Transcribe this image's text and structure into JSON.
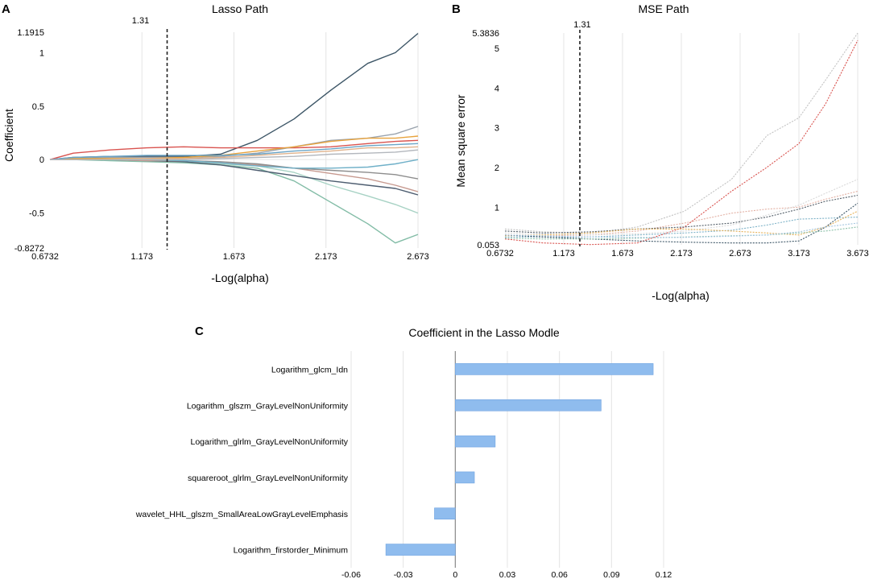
{
  "colors": {
    "gridline": "#e4e4e4",
    "axis": "#888888",
    "bar_fill": "#8fbcee",
    "bar_stroke": "#6fa3e0",
    "dashed_line": "#222222"
  },
  "panels": [
    {
      "letter": "A",
      "title": "Lasso Path"
    },
    {
      "letter": "B",
      "title": "MSE Path"
    },
    {
      "letter": "C",
      "title": "Coefficient in the Lasso Modle"
    }
  ],
  "chart_data": [
    {
      "id": "lasso_path",
      "type": "line",
      "title": "Lasso Path",
      "xlabel": "-Log(alpha)",
      "ylabel": "Coefficient",
      "xlim": [
        0.6732,
        2.673
      ],
      "ylim": [
        -0.8272,
        1.1915
      ],
      "x_ticks": [
        "0.6732",
        "1.173",
        "1.673",
        "2.173",
        "2.673"
      ],
      "x_tick_values": [
        0.6732,
        1.173,
        1.673,
        2.173,
        2.673
      ],
      "y_ticks": [
        "1.1915",
        "1",
        "0.5",
        "0",
        "-0.5",
        "-0.8272"
      ],
      "y_tick_values": [
        1.1915,
        1,
        0.5,
        0,
        -0.5,
        -0.8272
      ],
      "vline": {
        "x": 1.31,
        "label": "1.31"
      },
      "x": [
        0.6732,
        0.8,
        1.0,
        1.2,
        1.4,
        1.6,
        1.8,
        2.0,
        2.2,
        2.4,
        2.55,
        2.673
      ],
      "series": [
        {
          "color": "#3c5566",
          "values": [
            0,
            0.02,
            0.03,
            0.03,
            0.03,
            0.05,
            0.18,
            0.38,
            0.65,
            0.9,
            1.0,
            1.18
          ]
        },
        {
          "color": "#d9534f",
          "values": [
            0,
            0.06,
            0.09,
            0.11,
            0.12,
            0.11,
            0.11,
            0.11,
            0.12,
            0.15,
            0.17,
            0.18
          ]
        },
        {
          "color": "#9aa3ad",
          "values": [
            0,
            0.01,
            0.02,
            0.02,
            0.02,
            0.03,
            0.06,
            0.12,
            0.18,
            0.2,
            0.24,
            0.31
          ]
        },
        {
          "color": "#e8a33d",
          "values": [
            0,
            0.01,
            0.01,
            0.01,
            0.02,
            0.04,
            0.08,
            0.12,
            0.17,
            0.2,
            0.2,
            0.22
          ]
        },
        {
          "color": "#6aa5c7",
          "values": [
            0,
            0.02,
            0.03,
            0.04,
            0.04,
            0.04,
            0.05,
            0.08,
            0.1,
            0.13,
            0.14,
            0.15
          ]
        },
        {
          "color": "#82bca6",
          "values": [
            0,
            0,
            -0.01,
            -0.02,
            -0.03,
            -0.05,
            -0.08,
            -0.2,
            -0.4,
            -0.6,
            -0.78,
            -0.7
          ]
        },
        {
          "color": "#a7d2c4",
          "values": [
            0,
            0,
            0,
            -0.01,
            -0.02,
            -0.04,
            -0.06,
            -0.12,
            -0.24,
            -0.34,
            -0.42,
            -0.5
          ]
        },
        {
          "color": "#4d5d70",
          "values": [
            0,
            0,
            0,
            -0.01,
            -0.02,
            -0.05,
            -0.1,
            -0.15,
            -0.2,
            -0.24,
            -0.27,
            -0.33
          ]
        },
        {
          "color": "#c79a90",
          "values": [
            0,
            0,
            0,
            -0.01,
            -0.01,
            -0.03,
            -0.05,
            -0.08,
            -0.13,
            -0.18,
            -0.24,
            -0.3
          ]
        },
        {
          "color": "#8d8d8d",
          "values": [
            0,
            0,
            0,
            0,
            -0.01,
            -0.02,
            -0.04,
            -0.08,
            -0.1,
            -0.12,
            -0.14,
            -0.18
          ]
        },
        {
          "color": "#6fb0c8",
          "values": [
            0,
            0,
            0,
            0,
            -0.01,
            -0.03,
            -0.06,
            -0.08,
            -0.08,
            -0.07,
            -0.04,
            0
          ]
        },
        {
          "color": "#e0b38d",
          "values": [
            0,
            0,
            0,
            0.01,
            0.01,
            0.02,
            0.04,
            0.06,
            0.08,
            0.11,
            0.11,
            0.12
          ]
        },
        {
          "color": "#b3b7bd",
          "values": [
            0,
            0,
            0,
            0,
            0,
            0.01,
            0.02,
            0.03,
            0.05,
            0.06,
            0.07,
            0.09
          ]
        }
      ]
    },
    {
      "id": "mse_path",
      "type": "line",
      "title": "MSE Path",
      "xlabel": "-Log(alpha)",
      "ylabel": "Mean square error",
      "xlim": [
        0.6732,
        3.673
      ],
      "ylim": [
        0.053,
        5.3836
      ],
      "x_ticks": [
        "0.6732",
        "1.173",
        "1.673",
        "2.173",
        "2.673",
        "3.173",
        "3.673"
      ],
      "x_tick_values": [
        0.6732,
        1.173,
        1.673,
        2.173,
        2.673,
        3.173,
        3.673
      ],
      "y_ticks": [
        "5.3836",
        "5",
        "4",
        "3",
        "2",
        "1",
        "0.053"
      ],
      "y_tick_values": [
        5.3836,
        5,
        4,
        3,
        2,
        1,
        0.053
      ],
      "vline": {
        "x": 1.31,
        "label": "1.31"
      },
      "x": [
        0.6732,
        1.0,
        1.4,
        1.8,
        2.2,
        2.6,
        2.9,
        3.173,
        3.4,
        3.673
      ],
      "series": [
        {
          "color": "#c2c2c2",
          "values": [
            0.45,
            0.38,
            0.34,
            0.5,
            0.9,
            1.7,
            2.8,
            3.25,
            4.2,
            5.3836
          ]
        },
        {
          "color": "#d9534f",
          "values": [
            0.2,
            0.1,
            0.06,
            0.1,
            0.5,
            1.4,
            2.0,
            2.6,
            3.6,
            5.2
          ]
        },
        {
          "color": "#e3b0a3",
          "values": [
            0.3,
            0.28,
            0.3,
            0.4,
            0.6,
            0.85,
            0.95,
            1.0,
            1.2,
            1.4
          ]
        },
        {
          "color": "#55606a",
          "values": [
            0.4,
            0.35,
            0.38,
            0.45,
            0.5,
            0.6,
            0.75,
            0.95,
            1.15,
            1.3
          ]
        },
        {
          "color": "#d9d9d9",
          "values": [
            0.35,
            0.32,
            0.3,
            0.33,
            0.4,
            0.55,
            0.8,
            1.05,
            1.35,
            1.7
          ]
        },
        {
          "color": "#7fb3c8",
          "values": [
            0.25,
            0.25,
            0.25,
            0.3,
            0.35,
            0.42,
            0.55,
            0.7,
            0.72,
            0.75
          ]
        },
        {
          "color": "#e6b25a",
          "values": [
            0.28,
            0.3,
            0.35,
            0.45,
            0.45,
            0.4,
            0.35,
            0.3,
            0.5,
            0.9
          ]
        },
        {
          "color": "#3c5566",
          "values": [
            0.3,
            0.25,
            0.2,
            0.15,
            0.12,
            0.1,
            0.1,
            0.15,
            0.5,
            1.1
          ]
        },
        {
          "color": "#8ec1aa",
          "values": [
            0.22,
            0.2,
            0.2,
            0.22,
            0.25,
            0.28,
            0.3,
            0.35,
            0.4,
            0.5
          ]
        },
        {
          "color": "#a5c6e0",
          "values": [
            0.3,
            0.28,
            0.25,
            0.24,
            0.24,
            0.27,
            0.3,
            0.38,
            0.5,
            0.6
          ]
        }
      ]
    },
    {
      "id": "lasso_coefficients",
      "type": "bar",
      "orientation": "horizontal",
      "title": "Coefficient in the Lasso Modle",
      "categories": [
        "Logarithm_glcm_Idn",
        "Logarithm_glszm_GrayLevelNonUniformity",
        "Logarithm_glrlm_GrayLevelNonUniformity",
        "squareroot_glrlm_GrayLevelNonUniformity",
        "wavelet_HHL_glszm_SmallAreaLowGrayLevelEmphasis",
        "Logarithm_firstorder_Minimum"
      ],
      "values": [
        0.114,
        0.084,
        0.023,
        0.011,
        -0.012,
        -0.04
      ],
      "xlim": [
        -0.06,
        0.12
      ],
      "x_ticks": [
        "-0.06",
        "-0.03",
        "0",
        "0.03",
        "0.06",
        "0.09",
        "0.12"
      ],
      "x_tick_values": [
        -0.06,
        -0.03,
        0,
        0.03,
        0.06,
        0.09,
        0.12
      ]
    }
  ]
}
